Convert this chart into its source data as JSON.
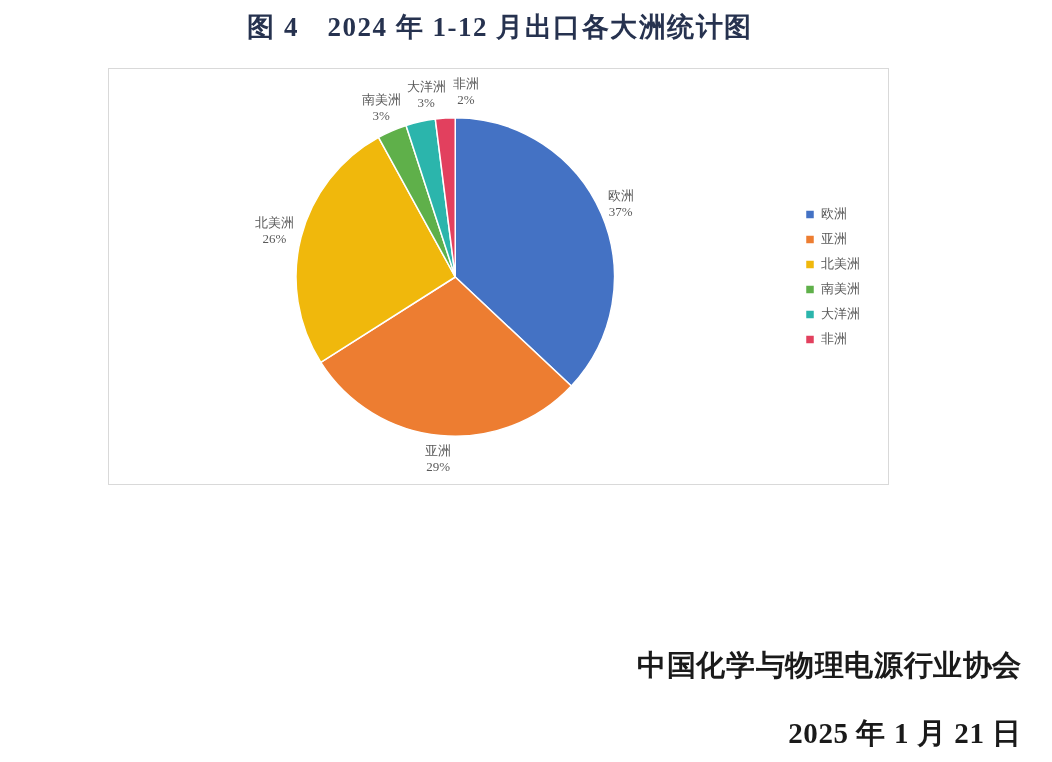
{
  "chart_data": {
    "type": "pie",
    "title": "图 4　2024 年 1-12 月出口各大洲统计图",
    "categories": [
      "欧洲",
      "亚洲",
      "北美洲",
      "南美洲",
      "大洋洲",
      "非洲"
    ],
    "values": [
      37,
      29,
      26,
      3,
      3,
      2
    ],
    "value_labels": [
      "37%",
      "29%",
      "26%",
      "3%",
      "3%",
      "2%"
    ],
    "colors": [
      "#4472c4",
      "#ed7d31",
      "#f0b80c",
      "#5fb04a",
      "#2bb5ac",
      "#e2405e"
    ],
    "legend": "right",
    "annotations": [
      "中国化学与物理电源行业协会",
      "2025 年 1 月 21 日"
    ]
  }
}
